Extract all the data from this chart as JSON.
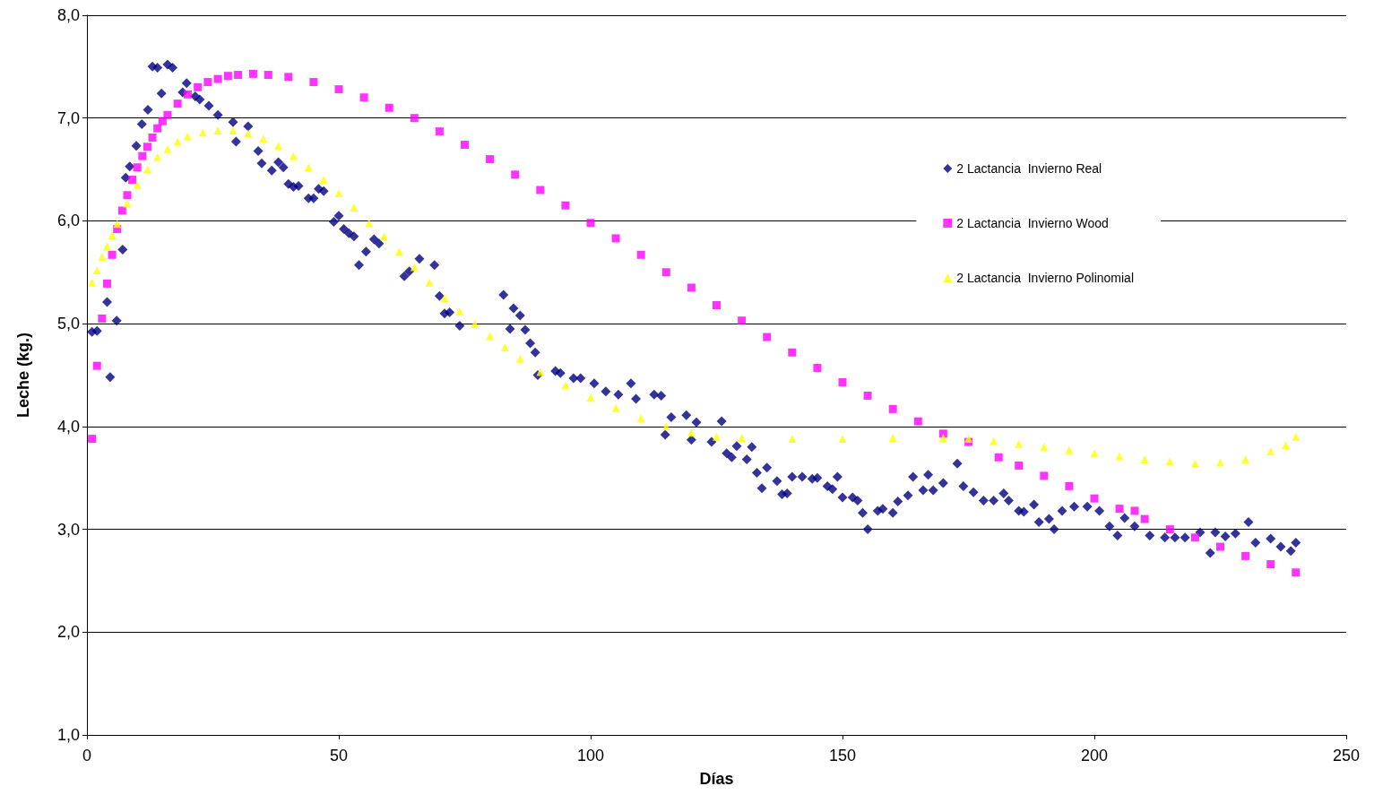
{
  "chart_data": {
    "type": "scatter",
    "xlabel": "Días",
    "ylabel": "Leche (kg.)",
    "xlim": [
      0,
      250
    ],
    "xticks": [
      0,
      50,
      100,
      150,
      200,
      250
    ],
    "ylim": [
      1,
      8
    ],
    "yticks": [
      {
        "value": 1,
        "label": "1,0"
      },
      {
        "value": 2,
        "label": "2,0"
      },
      {
        "value": 3,
        "label": "3,0"
      },
      {
        "value": 4,
        "label": "4,0"
      },
      {
        "value": 5,
        "label": "5,0"
      },
      {
        "value": 6,
        "label": "6,0"
      },
      {
        "value": 7,
        "label": "7,0"
      },
      {
        "value": 8,
        "label": "8,0"
      }
    ],
    "grid": "y",
    "legend": "top right",
    "series": [
      {
        "name": "2 Lactancia  Invierno Real",
        "color": "#000080",
        "marker": "diamond",
        "x": [
          1,
          2,
          4,
          4.6,
          5.9,
          7.1,
          7.7,
          8.5,
          9.8,
          10.9,
          12.1,
          13,
          14,
          14.8,
          16,
          17,
          19,
          19.8,
          21.5,
          22.4,
          24.2,
          26,
          29,
          29.6,
          32,
          34,
          34.7,
          36.7,
          38,
          39,
          40,
          41,
          42,
          44,
          45,
          46,
          47,
          49,
          50,
          51,
          52,
          53,
          54,
          55.4,
          57,
          58,
          63,
          64,
          66,
          69,
          70,
          71,
          72,
          74,
          82.7,
          84,
          84.7,
          86,
          87,
          88,
          89,
          89.5,
          93,
          94,
          96.6,
          98,
          100.7,
          103,
          105.5,
          108,
          109,
          112.6,
          114,
          114.8,
          116,
          119,
          120,
          121,
          124,
          126,
          127,
          128,
          129,
          131,
          132,
          133,
          134,
          135,
          137,
          138,
          139,
          140,
          142,
          144,
          145,
          147,
          148,
          149,
          150,
          152,
          153,
          154,
          155,
          157,
          158,
          160,
          161,
          163,
          164,
          166,
          167,
          168,
          170,
          172.8,
          174,
          176,
          178,
          180,
          182,
          183,
          185,
          186,
          188,
          189,
          191,
          192,
          193.6,
          196,
          198.6,
          201,
          203,
          204.6,
          206,
          208,
          211,
          214,
          216,
          218,
          221,
          223,
          224,
          226,
          228,
          230.6,
          232,
          235,
          237,
          239,
          240
        ],
        "values": [
          4.92,
          4.93,
          5.21,
          4.48,
          5.03,
          5.72,
          6.42,
          6.53,
          6.73,
          6.94,
          7.08,
          7.5,
          7.49,
          7.24,
          7.52,
          7.49,
          7.25,
          7.34,
          7.21,
          7.18,
          7.12,
          7.03,
          6.96,
          6.77,
          6.92,
          6.68,
          6.56,
          6.49,
          6.57,
          6.52,
          6.36,
          6.33,
          6.34,
          6.22,
          6.22,
          6.31,
          6.29,
          5.99,
          6.05,
          5.92,
          5.88,
          5.85,
          5.57,
          5.7,
          5.82,
          5.78,
          5.46,
          5.51,
          5.63,
          5.57,
          5.27,
          5.1,
          5.11,
          4.98,
          5.28,
          4.95,
          5.15,
          5.08,
          4.94,
          4.81,
          4.72,
          4.5,
          4.54,
          4.52,
          4.47,
          4.47,
          4.42,
          4.34,
          4.31,
          4.42,
          4.27,
          4.31,
          4.3,
          3.92,
          4.09,
          4.11,
          3.87,
          4.04,
          3.85,
          4.05,
          3.74,
          3.7,
          3.81,
          3.68,
          3.8,
          3.55,
          3.4,
          3.6,
          3.47,
          3.34,
          3.35,
          3.51,
          3.51,
          3.49,
          3.5,
          3.42,
          3.39,
          3.51,
          3.31,
          3.31,
          3.28,
          3.16,
          3,
          3.18,
          3.2,
          3.16,
          3.27,
          3.33,
          3.51,
          3.38,
          3.53,
          3.38,
          3.45,
          3.64,
          3.42,
          3.36,
          3.28,
          3.28,
          3.35,
          3.28,
          3.18,
          3.17,
          3.24,
          3.07,
          3.1,
          3,
          3.18,
          3.22,
          3.22,
          3.18,
          3.03,
          2.94,
          3.11,
          3.03,
          2.94,
          2.92,
          2.92,
          2.92,
          2.97,
          2.77,
          2.97,
          2.93,
          2.96,
          3.07,
          2.87,
          2.91,
          2.83,
          2.79,
          2.87
        ]
      },
      {
        "name": "2 Lactancia  Invierno Wood",
        "color": "#ff00ff",
        "marker": "square",
        "x": [
          1,
          2,
          3,
          4,
          5,
          6,
          7,
          8,
          9,
          10,
          11,
          12,
          13,
          14,
          15,
          16,
          18,
          20,
          22,
          24,
          26,
          28,
          30,
          33,
          36,
          40,
          45,
          50,
          55,
          60,
          65,
          70,
          75,
          80,
          85,
          90,
          95,
          100,
          105,
          110,
          115,
          120,
          125,
          130,
          135,
          140,
          145,
          150,
          155,
          160,
          165,
          170,
          175,
          181,
          185,
          190,
          195,
          200,
          205,
          208,
          210,
          215,
          220,
          225,
          230,
          235,
          240
        ],
        "values": [
          3.88,
          4.59,
          5.05,
          5.39,
          5.67,
          5.92,
          6.1,
          6.25,
          6.4,
          6.52,
          6.63,
          6.72,
          6.81,
          6.9,
          6.97,
          7.03,
          7.14,
          7.23,
          7.3,
          7.35,
          7.38,
          7.41,
          7.42,
          7.43,
          7.42,
          7.4,
          7.35,
          7.28,
          7.2,
          7.1,
          7,
          6.87,
          6.74,
          6.6,
          6.45,
          6.3,
          6.15,
          5.98,
          5.83,
          5.67,
          5.5,
          5.35,
          5.18,
          5.03,
          4.87,
          4.72,
          4.57,
          4.43,
          4.3,
          4.17,
          4.05,
          3.93,
          3.85,
          3.7,
          3.62,
          3.52,
          3.42,
          3.3,
          3.2,
          3.18,
          3.1,
          3,
          2.92,
          2.83,
          2.74,
          2.66,
          2.58
        ]
      },
      {
        "name": "2 Lactancia  Invierno Polinomial",
        "color": "#ffff00",
        "marker": "triangle",
        "x": [
          1,
          2,
          3,
          4,
          5,
          6,
          8,
          10,
          12,
          14,
          16,
          18,
          20,
          23,
          26,
          29,
          32,
          35,
          38,
          41,
          44,
          47,
          50,
          53,
          56,
          59,
          62,
          65,
          68,
          71,
          74,
          77,
          80,
          83,
          86,
          90,
          95,
          100,
          105,
          110,
          115,
          120,
          125,
          130,
          140,
          150,
          160,
          170,
          175,
          180,
          185,
          190,
          195,
          200,
          205,
          210,
          215,
          220,
          225,
          230,
          235,
          238,
          240
        ],
        "values": [
          5.4,
          5.52,
          5.65,
          5.75,
          5.86,
          5.97,
          6.17,
          6.35,
          6.5,
          6.62,
          6.7,
          6.77,
          6.82,
          6.86,
          6.88,
          6.88,
          6.85,
          6.8,
          6.73,
          6.63,
          6.52,
          6.4,
          6.27,
          6.13,
          5.98,
          5.85,
          5.7,
          5.55,
          5.4,
          5.25,
          5.12,
          5,
          4.88,
          4.77,
          4.66,
          4.53,
          4.4,
          4.28,
          4.18,
          4.08,
          4,
          3.94,
          3.9,
          3.89,
          3.88,
          3.88,
          3.89,
          3.89,
          3.88,
          3.86,
          3.83,
          3.8,
          3.77,
          3.74,
          3.71,
          3.68,
          3.66,
          3.64,
          3.65,
          3.68,
          3.76,
          3.82,
          3.9
        ]
      }
    ]
  }
}
